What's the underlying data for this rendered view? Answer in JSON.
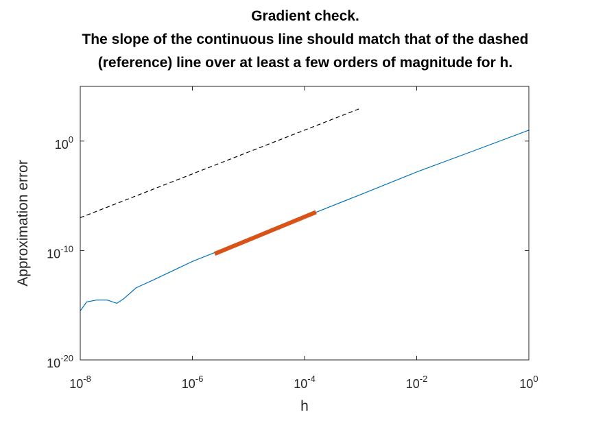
{
  "chart_data": {
    "type": "line",
    "title": [
      "Gradient check.",
      "The slope of the continuous line should match that of the dashed",
      "(reference) line over at least a few orders of magnitude for h."
    ],
    "xlabel": "h",
    "ylabel": "Approximation error",
    "xscale": "log",
    "yscale": "log",
    "xlim": [
      1e-08,
      1
    ],
    "ylim": [
      1e-20,
      100000.0
    ],
    "xticks": [
      {
        "base": "10",
        "exp": "-8",
        "value": 1e-08
      },
      {
        "base": "10",
        "exp": "-6",
        "value": 1e-06
      },
      {
        "base": "10",
        "exp": "-4",
        "value": 0.0001
      },
      {
        "base": "10",
        "exp": "-2",
        "value": 0.01
      },
      {
        "base": "10",
        "exp": "0",
        "value": 1
      }
    ],
    "yticks": [
      {
        "base": "10",
        "exp": "-20",
        "value": 1e-20
      },
      {
        "base": "10",
        "exp": "-10",
        "value": 1e-10
      },
      {
        "base": "10",
        "exp": "0",
        "value": 1
      }
    ],
    "series": [
      {
        "style": "solid",
        "color": "#0072BD",
        "x": [
          1e-08,
          1.3e-08,
          2e-08,
          3e-08,
          4.5e-08,
          6e-08,
          1e-07,
          2e-07,
          1e-06,
          1e-05,
          0.0001,
          0.001,
          0.01,
          0.1,
          1
        ],
        "y": [
          3e-16,
          2e-15,
          3e-15,
          3e-15,
          1.5e-15,
          4e-15,
          4e-14,
          2e-13,
          1e-11,
          1.1e-09,
          1.2e-07,
          1.3e-05,
          0.0015,
          0.12,
          10
        ]
      },
      {
        "style": "dashed",
        "color": "#000000",
        "x": [
          1e-08,
          0.001
        ],
        "y": [
          1e-07,
          1000.0
        ]
      },
      {
        "style": "highlight",
        "color": "#D95319",
        "x": [
          2.5e-06,
          0.00016
        ],
        "y": [
          5e-11,
          3.2e-07
        ]
      }
    ]
  }
}
